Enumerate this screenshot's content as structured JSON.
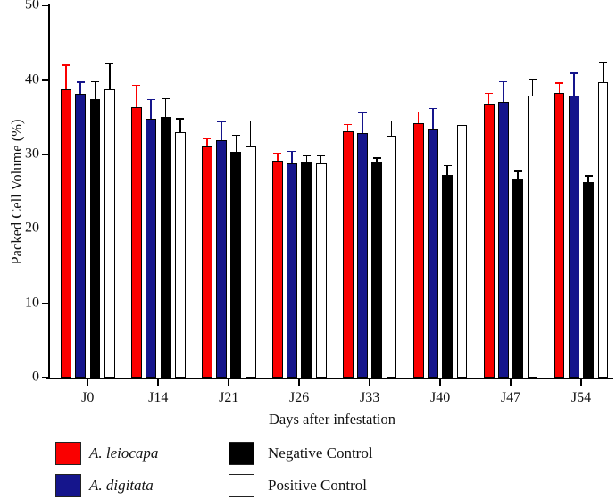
{
  "chart_data": {
    "type": "bar",
    "title": "",
    "xlabel": "Days after infestation",
    "ylabel": "Packed Cell Volume (%)",
    "ylim": [
      0,
      50
    ],
    "yticks": [
      0,
      10,
      20,
      30,
      40,
      50
    ],
    "grid": false,
    "legend_position": "bottom",
    "error_bars": "upper",
    "categories": [
      "J0",
      "J14",
      "J21",
      "J26",
      "J33",
      "J40",
      "J47",
      "J54"
    ],
    "series": [
      {
        "name": "A. leiocapa",
        "italic": true,
        "color": "#fa0000",
        "error_color": "#fa0000",
        "values": [
          38.8,
          36.4,
          31.1,
          29.2,
          33.1,
          34.2,
          36.7,
          38.3
        ],
        "errors": [
          3.3,
          3.0,
          1.1,
          1.0,
          1.0,
          1.6,
          1.6,
          1.4
        ]
      },
      {
        "name": "A. digitata",
        "italic": true,
        "color": "#15158c",
        "error_color": "#15158c",
        "values": [
          38.2,
          34.8,
          31.9,
          28.8,
          32.9,
          33.4,
          37.1,
          37.9
        ],
        "errors": [
          1.6,
          2.7,
          2.6,
          1.7,
          2.8,
          2.9,
          2.8,
          3.1
        ]
      },
      {
        "name": "Negative Control",
        "italic": false,
        "color": "#000000",
        "error_color": "#000000",
        "values": [
          37.5,
          35.1,
          30.4,
          29.0,
          28.9,
          27.3,
          26.7,
          26.3
        ],
        "errors": [
          2.4,
          2.5,
          2.3,
          0.9,
          0.7,
          1.3,
          1.1,
          0.9
        ]
      },
      {
        "name": "Positive Control",
        "italic": false,
        "color": "#ffffff",
        "error_color": "#000000",
        "values": [
          38.8,
          33.0,
          31.1,
          28.8,
          32.5,
          34.0,
          37.9,
          39.7
        ],
        "errors": [
          3.5,
          1.9,
          3.5,
          1.1,
          2.1,
          2.9,
          2.2,
          2.7
        ]
      }
    ]
  }
}
